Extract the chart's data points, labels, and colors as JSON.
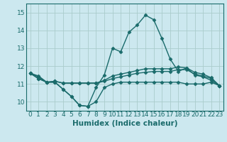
{
  "xlabel": "Humidex (Indice chaleur)",
  "bg_color": "#cce8ef",
  "grid_color": "#aacccc",
  "line_color": "#1a6b6b",
  "xlim": [
    -0.5,
    23.5
  ],
  "ylim": [
    9.5,
    15.5
  ],
  "yticks": [
    10,
    11,
    12,
    13,
    14,
    15
  ],
  "xticks": [
    0,
    1,
    2,
    3,
    4,
    5,
    6,
    7,
    8,
    9,
    10,
    11,
    12,
    13,
    14,
    15,
    16,
    17,
    18,
    19,
    20,
    21,
    22,
    23
  ],
  "series": [
    [
      11.6,
      11.3,
      11.1,
      11.1,
      10.7,
      10.3,
      9.8,
      9.75,
      10.0,
      10.8,
      11.0,
      11.1,
      11.1,
      11.1,
      11.1,
      11.1,
      11.1,
      11.1,
      11.1,
      11.0,
      11.0,
      11.0,
      11.1,
      10.9
    ],
    [
      11.6,
      11.3,
      11.1,
      11.1,
      10.7,
      10.3,
      9.8,
      9.75,
      10.8,
      11.5,
      13.0,
      12.8,
      13.9,
      14.3,
      14.85,
      14.6,
      13.55,
      12.4,
      11.7,
      11.9,
      11.5,
      11.4,
      11.2,
      10.9
    ],
    [
      11.6,
      11.4,
      11.1,
      11.15,
      11.05,
      11.05,
      11.05,
      11.05,
      11.05,
      11.15,
      11.3,
      11.4,
      11.5,
      11.6,
      11.65,
      11.7,
      11.7,
      11.7,
      11.8,
      11.8,
      11.55,
      11.45,
      11.3,
      10.9
    ],
    [
      11.6,
      11.45,
      11.1,
      11.15,
      11.05,
      11.05,
      11.05,
      11.05,
      11.05,
      11.2,
      11.45,
      11.55,
      11.65,
      11.75,
      11.85,
      11.85,
      11.85,
      11.85,
      11.95,
      11.9,
      11.65,
      11.55,
      11.35,
      10.9
    ]
  ],
  "marker": "D",
  "markersize": 2.5,
  "linewidth": 1.0,
  "tick_fontsize": 6.5,
  "xlabel_fontsize": 7.5
}
